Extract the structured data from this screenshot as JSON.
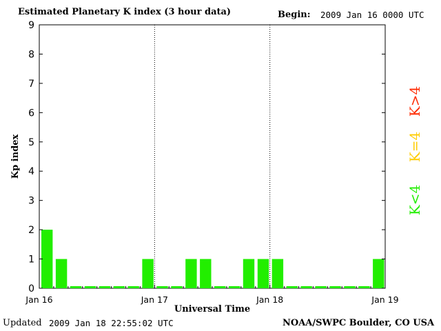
{
  "header": {
    "title": "Estimated Planetary K index (3 hour data)",
    "begin_label": "Begin:",
    "begin_value": "2009 Jan 16 0000 UTC"
  },
  "footer": {
    "updated_label": "Updated",
    "updated_value": "2009 Jan 18 22:55:02 UTC",
    "credit": "NOAA/SWPC Boulder, CO USA"
  },
  "legend": [
    {
      "label": "K>4",
      "color": "#ff2a00"
    },
    {
      "label": "K=4",
      "color": "#ffcc00"
    },
    {
      "label": "K<4",
      "color": "#22ee00"
    }
  ],
  "chart_data": {
    "type": "bar",
    "title": "Estimated Planetary K index (3 hour data)",
    "xlabel": "Universal Time",
    "ylabel": "Kp index",
    "ylim": [
      0,
      9
    ],
    "yticks": [
      "0",
      "1",
      "2",
      "3",
      "4",
      "5",
      "6",
      "7",
      "8",
      "9"
    ],
    "xticks": [
      "Jan 16",
      "Jan 17",
      "Jan 18",
      "Jan 19"
    ],
    "interval_hours": 3,
    "series": [
      {
        "values": [
          2,
          1,
          0,
          0,
          0,
          0,
          0,
          1,
          0,
          0,
          1,
          1,
          0,
          0,
          1,
          1,
          1,
          0,
          0,
          0,
          0,
          0,
          0,
          1
        ],
        "color": "#22ee00"
      }
    ],
    "day_separators": "dotted",
    "bar_color": "#22ee00"
  }
}
